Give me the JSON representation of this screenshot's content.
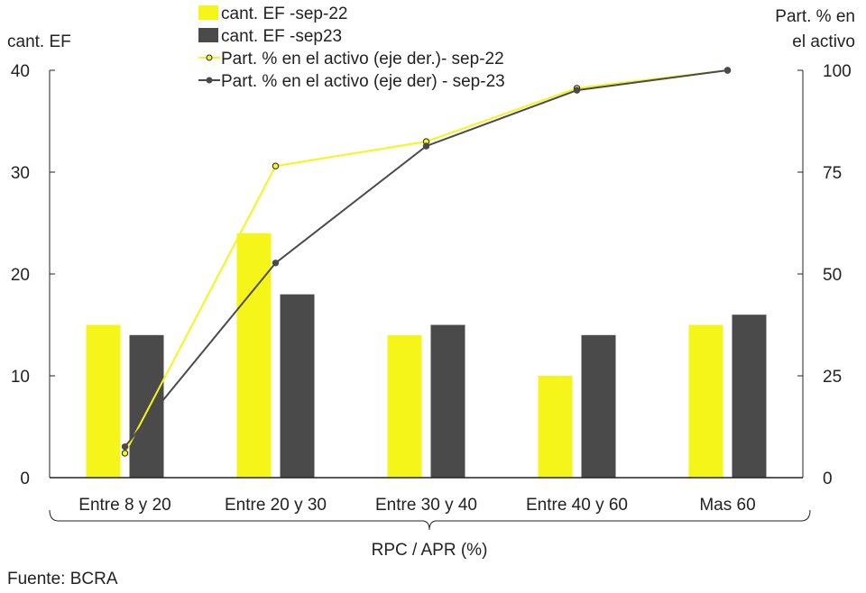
{
  "chart_data": {
    "type": "bar+line",
    "categories": [
      "Entre 8 y 20",
      "Entre 20 y 30",
      "Entre 30 y 40",
      "Entre 40 y 60",
      "Mas 60"
    ],
    "series": [
      {
        "name": "cant. EF -sep-22",
        "type": "bar",
        "axis": "left",
        "color": "#f5f51a",
        "values": [
          15,
          24,
          14,
          10,
          15
        ]
      },
      {
        "name": "cant. EF -sep23",
        "type": "bar",
        "axis": "left",
        "color": "#4a4a4a",
        "values": [
          14,
          18,
          15,
          14,
          16
        ]
      },
      {
        "name": "Part. % en el activo (eje der.)- sep-22",
        "type": "line",
        "axis": "right",
        "color": "#f5f51a",
        "values": [
          6,
          76.5,
          82.5,
          95.6,
          100
        ]
      },
      {
        "name": "Part. % en el activo (eje der) - sep-23",
        "type": "line",
        "axis": "right",
        "color": "#4a4a4a",
        "values": [
          7.6,
          52.7,
          81.4,
          95.1,
          100
        ]
      }
    ],
    "ylabel": "cant. EF",
    "y2label_lines": [
      "Part. % en",
      "el activo"
    ],
    "xlabel": "RPC / APR (%)",
    "ylim": [
      0,
      40
    ],
    "yticks": [
      0,
      10,
      20,
      30,
      40
    ],
    "y2lim": [
      0,
      100
    ],
    "y2ticks": [
      0,
      25,
      50,
      75,
      100
    ],
    "legend": "top-center",
    "source": "Fuente: BCRA"
  }
}
